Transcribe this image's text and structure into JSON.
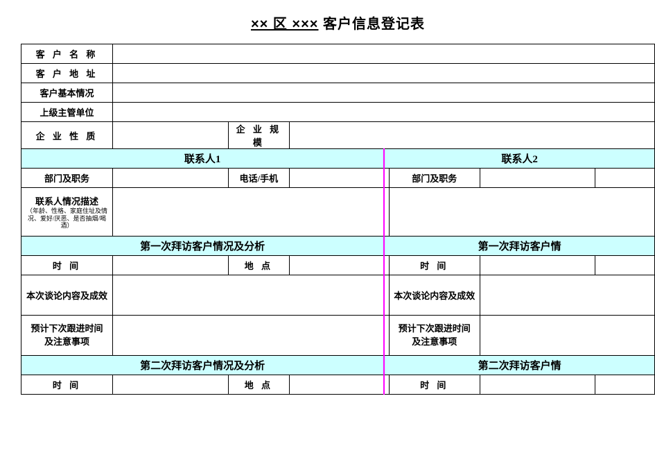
{
  "title_prefix": "×× 区 ×××",
  "title_suffix": " 客户信息登记表",
  "rows": {
    "customer_name": "客 户 名 称",
    "customer_addr": "客 户 地 址",
    "customer_basic": "客户基本情况",
    "superior_unit": "上级主管单位",
    "enterprise_nature": "企 业 性 质",
    "enterprise_scale": "企 业 规 模"
  },
  "contact": {
    "header1": "联系人1",
    "header2": "联系人2",
    "dept_post": "部门及职务",
    "phone": "电话/手机",
    "desc_title": "联系人情况描述",
    "desc_note": "（年龄、性格、家庭住址及情况、爱好/厌恶、是否抽烟/喝酒）"
  },
  "visit1": {
    "section_left": "第一次拜访客户情况及分析",
    "section_right": "第一次拜访客户情",
    "time": "时  间",
    "place": "地  点",
    "discuss": "本次谈论内容及成效",
    "followup": "预计下次跟进时间及注意事项"
  },
  "visit2": {
    "section_left": "第二次拜访客户情况及分析",
    "section_right": "第二次拜访客户情",
    "time": "时  间",
    "place": "地  点"
  },
  "colors": {
    "section_bg": "#ccffff",
    "border": "#000000",
    "divider": "#ff00ff",
    "background": "#ffffff"
  }
}
